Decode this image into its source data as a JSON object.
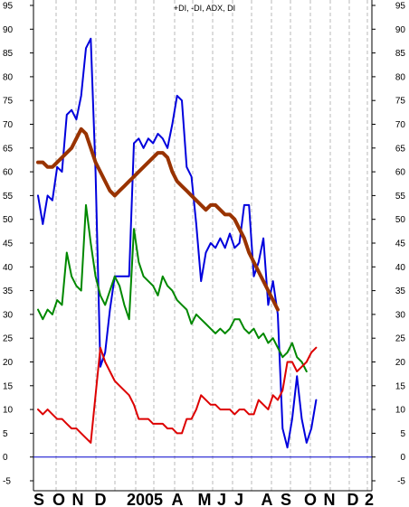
{
  "chart_data": {
    "type": "line",
    "title": "+DI, -DI, ADX, DI",
    "ylim": [
      -5,
      95
    ],
    "yticks": [
      95,
      90,
      85,
      80,
      75,
      70,
      65,
      60,
      55,
      50,
      45,
      40,
      35,
      30,
      25,
      20,
      15,
      10,
      5,
      0,
      -5
    ],
    "x_labels": [
      "S",
      "O",
      "N",
      "D",
      "2005",
      "A",
      "M",
      "J",
      "J",
      "A",
      "S",
      "O",
      "N",
      "D",
      "2"
    ],
    "zero_line": 0,
    "grid": "vertical dashed",
    "series": [
      {
        "color": "#0000dd",
        "width": 2,
        "values": [
          55,
          49,
          55,
          54,
          61,
          60,
          72,
          73,
          71,
          76,
          86,
          88,
          60,
          19,
          22,
          31,
          38,
          38,
          38,
          38,
          66,
          67,
          65,
          67,
          66,
          68,
          67,
          65,
          70,
          76,
          75,
          61,
          59,
          49,
          37,
          43,
          45,
          44,
          46,
          44,
          47,
          44,
          45,
          53,
          53,
          38,
          41,
          46,
          32,
          37,
          30,
          6,
          2,
          8,
          17,
          8,
          3,
          6,
          12
        ]
      },
      {
        "color": "#008800",
        "width": 2,
        "values": [
          31,
          29,
          31,
          30,
          33,
          32,
          43,
          38,
          36,
          35,
          53,
          45,
          38,
          34,
          32,
          35,
          38,
          36,
          32,
          29,
          48,
          41,
          38,
          37,
          36,
          34,
          38,
          36,
          35,
          33,
          32,
          31,
          28,
          30,
          29,
          28,
          27,
          26,
          27,
          26,
          27,
          29,
          29,
          27,
          26,
          27,
          25,
          26,
          24,
          25,
          23,
          21,
          22,
          24,
          21,
          20,
          18
        ]
      },
      {
        "color": "#dd0000",
        "width": 2,
        "values": [
          10,
          9,
          10,
          9,
          8,
          8,
          7,
          6,
          6,
          5,
          4,
          3,
          13,
          23,
          20,
          18,
          16,
          15,
          14,
          13,
          11,
          8,
          8,
          8,
          7,
          7,
          7,
          6,
          6,
          5,
          5,
          8,
          8,
          10,
          13,
          12,
          11,
          11,
          10,
          10,
          10,
          9,
          10,
          10,
          9,
          9,
          12,
          11,
          10,
          13,
          12,
          14,
          20,
          20,
          18,
          19,
          20,
          22,
          23
        ]
      },
      {
        "color": "#993300",
        "width": 4,
        "values": [
          62,
          62,
          61,
          61,
          62,
          63,
          64,
          65,
          67,
          69,
          68,
          65,
          62,
          60,
          58,
          56,
          55,
          56,
          57,
          58,
          59,
          60,
          61,
          62,
          63,
          64,
          64,
          63,
          60,
          58,
          57,
          56,
          55,
          54,
          53,
          52,
          53,
          53,
          52,
          51,
          51,
          50,
          48,
          46,
          43,
          41,
          39,
          37,
          35,
          33,
          31
        ]
      }
    ]
  }
}
